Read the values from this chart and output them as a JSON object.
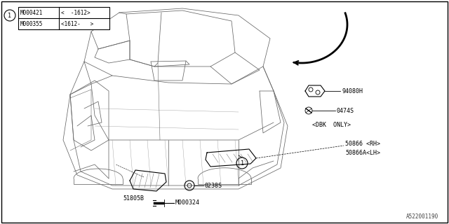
{
  "bg_color": "#ffffff",
  "fig_width": 6.4,
  "fig_height": 3.2,
  "watermark": "A522001190",
  "table_row1_part": "M000421",
  "table_row1_range": "<  -1612>",
  "table_row2_part": "M000355",
  "table_row2_range": "<1612-   >",
  "label_94080H": "94080H",
  "label_0474S": "0474S",
  "label_dbk": "<DBK  ONLY>",
  "label_50866rh": "50866 <RH>",
  "label_50866lh": "50866A<LH>",
  "label_51805B": "51805B",
  "label_0238S": "0238S",
  "label_M000324": "M000324"
}
